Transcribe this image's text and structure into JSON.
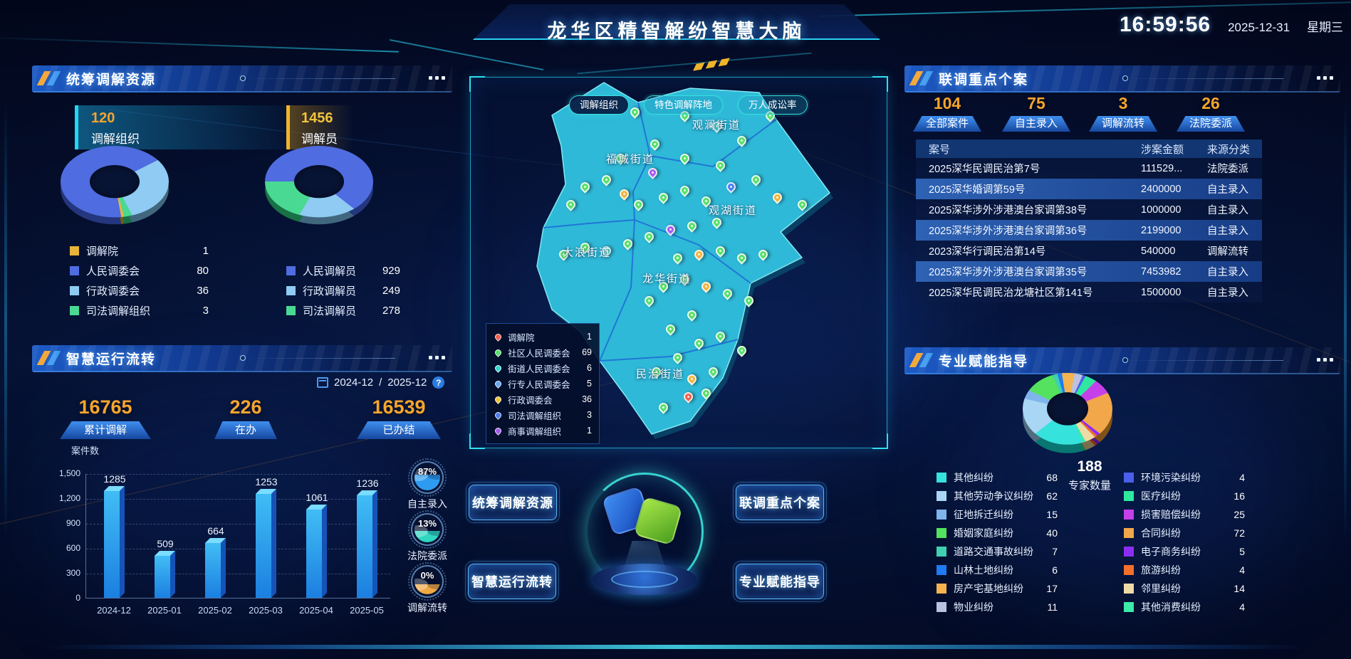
{
  "header": {
    "title": "龙华区精智解纷智慧大脑",
    "time": "16:59:56",
    "date": "2025-12-31",
    "weekday": "星期三"
  },
  "panels": {
    "resources": {
      "title": "统筹调解资源",
      "stats": [
        {
          "value": "120",
          "label": "调解组织"
        },
        {
          "value": "1456",
          "label": "调解员"
        }
      ],
      "org_legend": [
        {
          "label": "调解院",
          "value": "1",
          "color": "#E9B43A"
        },
        {
          "label": "人民调委会",
          "value": "80",
          "color": "#4F6CE0"
        },
        {
          "label": "行政调委会",
          "value": "36",
          "color": "#8FCBF2"
        },
        {
          "label": "司法调解组织",
          "value": "3",
          "color": "#4AD992"
        }
      ],
      "med_legend": [
        {
          "label": "人民调解员",
          "value": "929",
          "color": "#4F6CE0"
        },
        {
          "label": "行政调解员",
          "value": "249",
          "color": "#8FCBF2"
        },
        {
          "label": "司法调解员",
          "value": "278",
          "color": "#4AD992"
        }
      ]
    },
    "operation": {
      "title": "智慧运行流转",
      "date_start": "2024-12",
      "date_sep": "/",
      "date_end": "2025-12",
      "help": "?",
      "stats": [
        {
          "value": "16765",
          "label": "累计调解"
        },
        {
          "value": "226",
          "label": "在办"
        },
        {
          "value": "16539",
          "label": "已办结"
        }
      ],
      "gauges": [
        {
          "pct": "87%",
          "label": "自主录入",
          "color": "#2D9CF0"
        },
        {
          "pct": "13%",
          "label": "法院委派",
          "color": "#2FD6C0"
        },
        {
          "pct": "0%",
          "label": "调解流转",
          "color": "#F0A843"
        }
      ]
    },
    "map": {
      "buttons": [
        {
          "label": "调解组织",
          "active": true
        },
        {
          "label": "特色调解阵地",
          "active": false
        },
        {
          "label": "万人成讼率",
          "active": false
        }
      ],
      "streets": [
        "观澜街道",
        "福城街道",
        "观湖街道",
        "大浪街道",
        "龙华街道",
        "民治街道"
      ],
      "legend": [
        {
          "label": "调解院",
          "value": "1",
          "color": "#F0604A"
        },
        {
          "label": "社区人民调委会",
          "value": "69",
          "color": "#58E06A"
        },
        {
          "label": "街道人民调委会",
          "value": "6",
          "color": "#35D6D0"
        },
        {
          "label": "行专人民调委会",
          "value": "5",
          "color": "#64A8F0"
        },
        {
          "label": "行政调委会",
          "value": "36",
          "color": "#F0C23A"
        },
        {
          "label": "司法调解组织",
          "value": "3",
          "color": "#4A7DF0"
        },
        {
          "label": "商事调解组织",
          "value": "1",
          "color": "#A45CF0"
        }
      ]
    },
    "nav": {
      "buttons": [
        {
          "label": "统筹调解资源"
        },
        {
          "label": "智慧运行流转"
        },
        {
          "label": "联调重点个案"
        },
        {
          "label": "专业赋能指导"
        }
      ]
    },
    "cases": {
      "title": "联调重点个案",
      "stats": [
        {
          "value": "104",
          "label": "全部案件"
        },
        {
          "value": "75",
          "label": "自主录入"
        },
        {
          "value": "3",
          "label": "调解流转"
        },
        {
          "value": "26",
          "label": "法院委派"
        }
      ],
      "table": {
        "headers": [
          "案号",
          "涉案金额",
          "来源分类"
        ],
        "rows": [
          {
            "no": "2025深华民调民治第7号",
            "amount": "111529...",
            "source": "法院委派",
            "highlighted": false
          },
          {
            "no": "2025深华婚调第59号",
            "amount": "2400000",
            "source": "自主录入",
            "highlighted": true
          },
          {
            "no": "2025深华涉外涉港澳台家调第38号",
            "amount": "1000000",
            "source": "自主录入",
            "highlighted": false
          },
          {
            "no": "2025深华涉外涉港澳台家调第36号",
            "amount": "2199000",
            "source": "自主录入",
            "highlighted": true
          },
          {
            "no": "2023深华行调民治第14号",
            "amount": "540000",
            "source": "调解流转",
            "highlighted": false
          },
          {
            "no": "2025深华涉外涉港澳台家调第35号",
            "amount": "7453982",
            "source": "自主录入",
            "highlighted": true
          },
          {
            "no": "2025深华民调民治龙塘社区第141号",
            "amount": "1500000",
            "source": "自主录入",
            "highlighted": false
          }
        ]
      }
    },
    "experts": {
      "title": "专业赋能指导",
      "total_value": "188",
      "total_label": "专家数量",
      "legend_left": [
        {
          "label": "其他纠纷",
          "value": "68",
          "color": "#35E2DC"
        },
        {
          "label": "其他劳动争议纠纷",
          "value": "62",
          "color": "#A9D6F5"
        },
        {
          "label": "征地拆迁纠纷",
          "value": "15",
          "color": "#7FB4EC"
        },
        {
          "label": "婚姻家庭纠纷",
          "value": "40",
          "color": "#55E25F"
        },
        {
          "label": "道路交通事故纠纷",
          "value": "7",
          "color": "#3FD0B2"
        },
        {
          "label": "山林土地纠纷",
          "value": "6",
          "color": "#1F7BF2"
        },
        {
          "label": "房产宅基地纠纷",
          "value": "17",
          "color": "#F5B34F"
        },
        {
          "label": "物业纠纷",
          "value": "11",
          "color": "#BAC2DF"
        }
      ],
      "legend_right": [
        {
          "label": "环境污染纠纷",
          "value": "4",
          "color": "#4B60EA"
        },
        {
          "label": "医疗纠纷",
          "value": "16",
          "color": "#2FE8A0"
        },
        {
          "label": "损害赔偿纠纷",
          "value": "25",
          "color": "#C640EA"
        },
        {
          "label": "合同纠纷",
          "value": "72",
          "color": "#F2A74A"
        },
        {
          "label": "电子商务纠纷",
          "value": "5",
          "color": "#8B2EF2"
        },
        {
          "label": "旅游纠纷",
          "value": "4",
          "color": "#F2702C"
        },
        {
          "label": "邻里纠纷",
          "value": "14",
          "color": "#EEDAA6"
        },
        {
          "label": "其他消费纠纷",
          "value": "4",
          "color": "#3DEAA8"
        }
      ]
    }
  },
  "chart_data": [
    {
      "type": "pie",
      "title": "调解组织构成",
      "total": 120,
      "labels": [
        "调解院",
        "人民调委会",
        "行政调委会",
        "司法调解组织"
      ],
      "values": [
        1,
        80,
        36,
        3
      ],
      "colors": [
        "#E9B43A",
        "#4F6CE0",
        "#8FCBF2",
        "#4AD992"
      ],
      "legend_position": "below"
    },
    {
      "type": "pie",
      "title": "调解员构成",
      "total": 1456,
      "labels": [
        "人民调解员",
        "行政调解员",
        "司法调解员"
      ],
      "values": [
        929,
        249,
        278
      ],
      "colors": [
        "#4F6CE0",
        "#8FCBF2",
        "#4AD992"
      ],
      "legend_position": "below"
    },
    {
      "type": "bar",
      "title": "月度案件数",
      "ylabel": "案件数",
      "categories": [
        "2024-12",
        "2025-01",
        "2025-02",
        "2025-03",
        "2025-04",
        "2025-05"
      ],
      "values": [
        1285,
        509,
        664,
        1253,
        1061,
        1236
      ],
      "ylim": [
        0,
        1500
      ],
      "yticks": [
        "1,500",
        "1,200",
        "900",
        "600",
        "300",
        "0"
      ],
      "grid": true
    },
    {
      "type": "pie",
      "title": "专家数量分布",
      "total": 188,
      "labels": [
        "其他纠纷",
        "其他劳动争议纠纷",
        "征地拆迁纠纷",
        "婚姻家庭纠纷",
        "道路交通事故纠纷",
        "山林土地纠纷",
        "房产宅基地纠纷",
        "物业纠纷",
        "环境污染纠纷",
        "医疗纠纷",
        "损害赔偿纠纷",
        "合同纠纷",
        "电子商务纠纷",
        "旅游纠纷",
        "邻里纠纷",
        "其他消费纠纷"
      ],
      "values": [
        68,
        62,
        15,
        40,
        7,
        6,
        17,
        11,
        4,
        16,
        25,
        72,
        5,
        4,
        14,
        4
      ],
      "colors": [
        "#35E2DC",
        "#A9D6F5",
        "#7FB4EC",
        "#55E25F",
        "#3FD0B2",
        "#1F7BF2",
        "#F5B34F",
        "#BAC2DF",
        "#4B60EA",
        "#2FE8A0",
        "#C640EA",
        "#F2A74A",
        "#8B2EF2",
        "#F2702C",
        "#EEDAA6",
        "#3DEAA8"
      ]
    },
    {
      "type": "gauge",
      "title": "案件来源占比",
      "items": [
        {
          "label": "自主录入",
          "value": "87%"
        },
        {
          "label": "法院委派",
          "value": "13%"
        },
        {
          "label": "调解流转",
          "value": "0%"
        }
      ]
    }
  ]
}
